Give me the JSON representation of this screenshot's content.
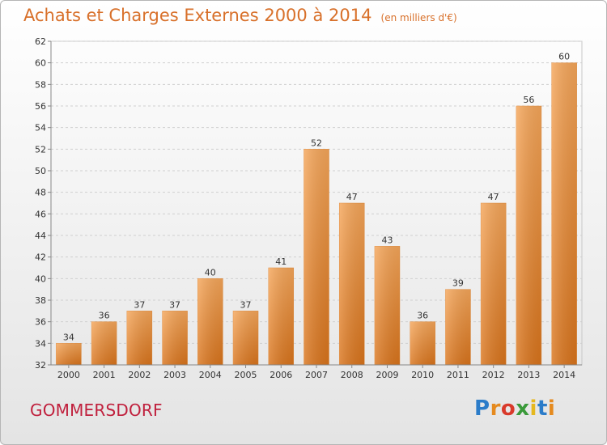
{
  "header": {
    "title": "Achats et Charges Externes 2000 à 2014",
    "unit": "(en milliers d'€)"
  },
  "footer": {
    "city": "GOMMERSDORF",
    "brand_letters": [
      {
        "char": "P",
        "color": "#2b7cc9"
      },
      {
        "char": "r",
        "color": "#e58a1f"
      },
      {
        "char": "o",
        "color": "#d93a2b"
      },
      {
        "char": "x",
        "color": "#3a9a3a"
      },
      {
        "char": "i",
        "color": "#e5b81f"
      },
      {
        "char": "t",
        "color": "#2b7cc9"
      },
      {
        "char": "i",
        "color": "#e58a1f"
      }
    ]
  },
  "chart_data": {
    "type": "bar",
    "title": "Achats et Charges Externes 2000 à 2014",
    "subtitle": "(en milliers d'€)",
    "categories": [
      "2000",
      "2001",
      "2002",
      "2003",
      "2004",
      "2005",
      "2006",
      "2007",
      "2008",
      "2009",
      "2010",
      "2011",
      "2012",
      "2013",
      "2014"
    ],
    "values": [
      34,
      36,
      37,
      37,
      40,
      37,
      41,
      52,
      47,
      43,
      36,
      39,
      47,
      56,
      60
    ],
    "ylim": [
      32,
      62
    ],
    "yticks": [
      32,
      34,
      36,
      38,
      40,
      42,
      44,
      46,
      48,
      50,
      52,
      54,
      56,
      58,
      60,
      62
    ],
    "grid": true,
    "bar_color_top": "#f5a65a",
    "bar_color_bottom": "#d9741c"
  }
}
